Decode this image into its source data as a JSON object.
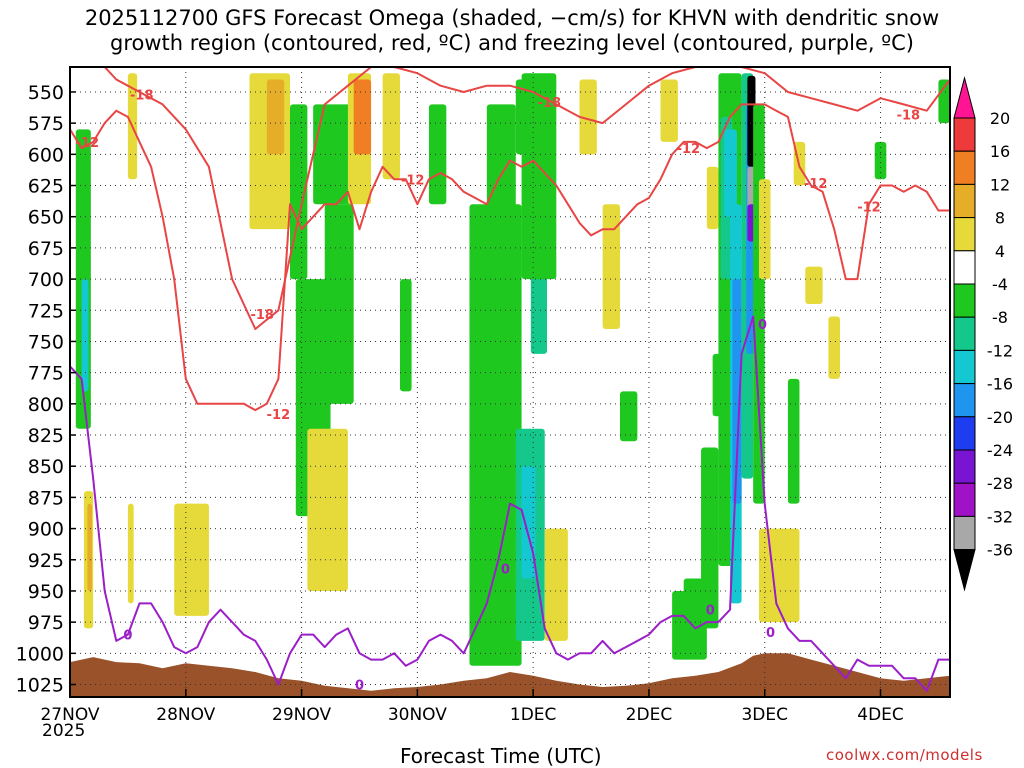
{
  "title": "2025112700 GFS Forecast Omega (shaded, −cm/s) for KHVN with dendritic snow\ngrowth region (contoured, red, ºC) and freezing level (contoured, purple, ºC)",
  "footer": {
    "xlabel": "Forecast Time (UTC)",
    "credit": "coolwx.com/models",
    "year": "2025"
  },
  "chart_data": {
    "type": "heatmap",
    "y_levels": [
      "550",
      "575",
      "600",
      "625",
      "650",
      "675",
      "700",
      "725",
      "750",
      "775",
      "800",
      "825",
      "850",
      "875",
      "900",
      "925",
      "950",
      "975",
      "1000",
      "1025"
    ],
    "ylim": [
      1035,
      530
    ],
    "x_days": [
      "27NOV",
      "28NOV",
      "29NOV",
      "30NOV",
      "1DEC",
      "2DEC",
      "3DEC",
      "4DEC"
    ],
    "xlim": [
      0,
      7.6
    ],
    "colorbar": {
      "labels": [
        "20",
        "16",
        "12",
        "8",
        "4",
        "-4",
        "-8",
        "-12",
        "-16",
        "-20",
        "-24",
        "-28",
        "-32",
        "-36"
      ],
      "colors": [
        "#ff1493",
        "#ee3a3a",
        "#ef7f22",
        "#e6ad28",
        "#e6da3a",
        "#ffffff",
        "#1ec81e",
        "#14c88c",
        "#14c8d2",
        "#1e96f0",
        "#1e3cf0",
        "#7814d2",
        "#a012c8",
        "#a8a8a8",
        "#000000"
      ]
    },
    "omega_blobs": [
      {
        "x": [
          0.05,
          0.18
        ],
        "p": [
          580,
          820
        ],
        "c": "#1ec81e"
      },
      {
        "x": [
          0.1,
          0.16
        ],
        "p": [
          700,
          790
        ],
        "c": "#14c8d2"
      },
      {
        "x": [
          0.12,
          0.2
        ],
        "p": [
          870,
          980
        ],
        "c": "#e6da3a"
      },
      {
        "x": [
          0.15,
          0.19
        ],
        "p": [
          880,
          950
        ],
        "c": "#e6ad28"
      },
      {
        "x": [
          0.5,
          0.55
        ],
        "p": [
          880,
          960
        ],
        "c": "#e6da3a"
      },
      {
        "x": [
          0.5,
          0.58
        ],
        "p": [
          535,
          620
        ],
        "c": "#e6da3a"
      },
      {
        "x": [
          0.9,
          1.2
        ],
        "p": [
          880,
          970
        ],
        "c": "#e6da3a"
      },
      {
        "x": [
          1.55,
          1.9
        ],
        "p": [
          535,
          660
        ],
        "c": "#e6da3a"
      },
      {
        "x": [
          1.7,
          1.85
        ],
        "p": [
          540,
          600
        ],
        "c": "#e6ad28"
      },
      {
        "x": [
          1.9,
          2.05
        ],
        "p": [
          560,
          700
        ],
        "c": "#1ec81e"
      },
      {
        "x": [
          1.95,
          2.25
        ],
        "p": [
          700,
          890
        ],
        "c": "#1ec81e"
      },
      {
        "x": [
          2.05,
          2.4
        ],
        "p": [
          820,
          950
        ],
        "c": "#e6da3a"
      },
      {
        "x": [
          2.1,
          2.45
        ],
        "p": [
          560,
          640
        ],
        "c": "#1ec81e"
      },
      {
        "x": [
          2.2,
          2.45
        ],
        "p": [
          640,
          800
        ],
        "c": "#1ec81e"
      },
      {
        "x": [
          2.4,
          2.6
        ],
        "p": [
          535,
          640
        ],
        "c": "#e6da3a"
      },
      {
        "x": [
          2.45,
          2.6
        ],
        "p": [
          540,
          600
        ],
        "c": "#ef7f22"
      },
      {
        "x": [
          2.7,
          2.85
        ],
        "p": [
          535,
          620
        ],
        "c": "#e6da3a"
      },
      {
        "x": [
          2.85,
          2.95
        ],
        "p": [
          700,
          790
        ],
        "c": "#1ec81e"
      },
      {
        "x": [
          3.1,
          3.25
        ],
        "p": [
          560,
          640
        ],
        "c": "#1ec81e"
      },
      {
        "x": [
          3.45,
          3.9
        ],
        "p": [
          640,
          1010
        ],
        "c": "#1ec81e"
      },
      {
        "x": [
          3.6,
          3.85
        ],
        "p": [
          560,
          660
        ],
        "c": "#1ec81e"
      },
      {
        "x": [
          3.7,
          3.85
        ],
        "p": [
          740,
          820
        ],
        "c": "#1ec81e"
      },
      {
        "x": [
          3.85,
          3.95
        ],
        "p": [
          540,
          600
        ],
        "c": "#1ec81e"
      },
      {
        "x": [
          3.85,
          4.1
        ],
        "p": [
          820,
          990
        ],
        "c": "#14c88c"
      },
      {
        "x": [
          3.9,
          4.02
        ],
        "p": [
          850,
          940
        ],
        "c": "#14c8d2"
      },
      {
        "x": [
          3.98,
          4.12
        ],
        "p": [
          640,
          760
        ],
        "c": "#14c88c"
      },
      {
        "x": [
          3.9,
          4.2
        ],
        "p": [
          535,
          700
        ],
        "c": "#1ec81e"
      },
      {
        "x": [
          4.1,
          4.3
        ],
        "p": [
          900,
          990
        ],
        "c": "#e6da3a"
      },
      {
        "x": [
          4.4,
          4.55
        ],
        "p": [
          540,
          600
        ],
        "c": "#e6da3a"
      },
      {
        "x": [
          4.6,
          4.75
        ],
        "p": [
          640,
          740
        ],
        "c": "#e6da3a"
      },
      {
        "x": [
          4.75,
          4.9
        ],
        "p": [
          790,
          830
        ],
        "c": "#1ec81e"
      },
      {
        "x": [
          5.1,
          5.25
        ],
        "p": [
          540,
          590
        ],
        "c": "#e6da3a"
      },
      {
        "x": [
          5.2,
          5.35
        ],
        "p": [
          950,
          1005
        ],
        "c": "#1ec81e"
      },
      {
        "x": [
          5.3,
          5.5
        ],
        "p": [
          940,
          1005
        ],
        "c": "#1ec81e"
      },
      {
        "x": [
          5.45,
          5.6
        ],
        "p": [
          835,
          980
        ],
        "c": "#1ec81e"
      },
      {
        "x": [
          5.5,
          5.6
        ],
        "p": [
          610,
          660
        ],
        "c": "#e6da3a"
      },
      {
        "x": [
          5.55,
          5.62
        ],
        "p": [
          760,
          810
        ],
        "c": "#1ec81e"
      },
      {
        "x": [
          5.6,
          5.8
        ],
        "p": [
          535,
          930
        ],
        "c": "#1ec81e"
      },
      {
        "x": [
          5.62,
          5.72
        ],
        "p": [
          570,
          700
        ],
        "c": "#14c88c"
      },
      {
        "x": [
          5.65,
          5.76
        ],
        "p": [
          580,
          650
        ],
        "c": "#14c8d2"
      },
      {
        "x": [
          5.7,
          5.8
        ],
        "p": [
          640,
          960
        ],
        "c": "#14c8d2"
      },
      {
        "x": [
          5.72,
          5.8
        ],
        "p": [
          700,
          880
        ],
        "c": "#1e96f0"
      },
      {
        "x": [
          5.8,
          5.9
        ],
        "p": [
          535,
          860
        ],
        "c": "#14c88c"
      },
      {
        "x": [
          5.84,
          5.92
        ],
        "p": [
          560,
          760
        ],
        "c": "#1e96f0"
      },
      {
        "x": [
          5.85,
          5.92
        ],
        "p": [
          537,
          610
        ],
        "c": "#000000"
      },
      {
        "x": [
          5.85,
          5.92
        ],
        "p": [
          610,
          650
        ],
        "c": "#a8a8a8"
      },
      {
        "x": [
          5.85,
          5.92
        ],
        "p": [
          640,
          670
        ],
        "c": "#7814d2"
      },
      {
        "x": [
          5.9,
          6.0
        ],
        "p": [
          560,
          880
        ],
        "c": "#1ec81e"
      },
      {
        "x": [
          5.95,
          6.05
        ],
        "p": [
          620,
          700
        ],
        "c": "#e6da3a"
      },
      {
        "x": [
          5.95,
          6.3
        ],
        "p": [
          900,
          975
        ],
        "c": "#e6da3a"
      },
      {
        "x": [
          6.2,
          6.3
        ],
        "p": [
          780,
          880
        ],
        "c": "#1ec81e"
      },
      {
        "x": [
          6.25,
          6.35
        ],
        "p": [
          590,
          625
        ],
        "c": "#e6da3a"
      },
      {
        "x": [
          6.35,
          6.5
        ],
        "p": [
          690,
          720
        ],
        "c": "#e6da3a"
      },
      {
        "x": [
          6.55,
          6.65
        ],
        "p": [
          730,
          780
        ],
        "c": "#e6da3a"
      },
      {
        "x": [
          6.95,
          7.05
        ],
        "p": [
          590,
          620
        ],
        "c": "#1ec81e"
      },
      {
        "x": [
          7.5,
          7.6
        ],
        "p": [
          540,
          575
        ],
        "c": "#1ec81e"
      }
    ],
    "series": [
      {
        "name": "-12",
        "color": "#e84545",
        "x": [
          0.0,
          0.1,
          0.2,
          0.3,
          0.4,
          0.5,
          0.6,
          0.7,
          0.8,
          0.9,
          1.0,
          1.1,
          1.2,
          1.3,
          1.4,
          1.5,
          1.6,
          1.7,
          1.8,
          1.9,
          2.0,
          2.1,
          2.2,
          2.3,
          2.4,
          2.5,
          2.6,
          2.7,
          2.8,
          2.9,
          3.0,
          3.1,
          3.2,
          3.3,
          3.4,
          3.5,
          3.6,
          3.7,
          3.8,
          3.9,
          4.0,
          4.1,
          4.2,
          4.3,
          4.4,
          4.5,
          4.6,
          4.7,
          4.8,
          4.9,
          5.0,
          5.1,
          5.2,
          5.3,
          5.4,
          5.5,
          5.6,
          5.7,
          5.8,
          5.9,
          6.0,
          6.1,
          6.2,
          6.3,
          6.4,
          6.5,
          6.6,
          6.7,
          6.8,
          6.9,
          7.0,
          7.1,
          7.2,
          7.3,
          7.4,
          7.5,
          7.6
        ],
        "p": [
          580,
          595,
          590,
          575,
          565,
          570,
          590,
          610,
          650,
          700,
          780,
          800,
          800,
          800,
          800,
          800,
          805,
          800,
          780,
          640,
          660,
          650,
          640,
          640,
          630,
          660,
          630,
          610,
          620,
          620,
          640,
          620,
          615,
          620,
          630,
          635,
          640,
          620,
          605,
          610,
          605,
          615,
          625,
          640,
          655,
          665,
          660,
          660,
          650,
          640,
          635,
          620,
          600,
          590,
          590,
          595,
          590,
          570,
          560,
          560,
          560,
          565,
          570,
          610,
          625,
          630,
          660,
          700,
          700,
          640,
          625,
          625,
          630,
          625,
          630,
          645,
          645
        ]
      },
      {
        "name": "-18",
        "color": "#e84545",
        "x": [
          0.0,
          0.2,
          0.4,
          0.6,
          0.8,
          1.0,
          1.2,
          1.4,
          1.6,
          1.8,
          2.0,
          2.2,
          2.4,
          2.6,
          2.8,
          3.0,
          3.2,
          3.4,
          3.6,
          3.8,
          4.0,
          4.2,
          4.4,
          4.6,
          4.8,
          5.0,
          5.2,
          5.4,
          5.6,
          5.8,
          6.0,
          6.2,
          6.4,
          6.6,
          6.8,
          7.0,
          7.2,
          7.4,
          7.6
        ],
        "p": [
          520,
          520,
          540,
          550,
          560,
          580,
          610,
          700,
          740,
          725,
          640,
          560,
          545,
          530,
          530,
          535,
          545,
          550,
          545,
          545,
          550,
          560,
          570,
          575,
          560,
          545,
          535,
          530,
          530,
          530,
          535,
          550,
          555,
          560,
          565,
          555,
          560,
          565,
          540
        ]
      },
      {
        "name": "0",
        "color": "#9b1fc8",
        "x": [
          0.0,
          0.1,
          0.2,
          0.3,
          0.4,
          0.5,
          0.6,
          0.7,
          0.8,
          0.9,
          1.0,
          1.1,
          1.2,
          1.3,
          1.4,
          1.5,
          1.6,
          1.7,
          1.8,
          1.9,
          2.0,
          2.1,
          2.2,
          2.3,
          2.4,
          2.5,
          2.6,
          2.7,
          2.8,
          2.9,
          3.0,
          3.1,
          3.2,
          3.3,
          3.4,
          3.5,
          3.6,
          3.7,
          3.8,
          3.9,
          4.0,
          4.1,
          4.2,
          4.3,
          4.4,
          4.5,
          4.6,
          4.7,
          4.8,
          4.9,
          5.0,
          5.1,
          5.2,
          5.3,
          5.4,
          5.5,
          5.6,
          5.7,
          5.8,
          5.9,
          6.0,
          6.1,
          6.2,
          6.3,
          6.4,
          6.5,
          6.6,
          6.7,
          6.8,
          6.9,
          7.0,
          7.1,
          7.2,
          7.3,
          7.4,
          7.5,
          7.6
        ],
        "p": [
          770,
          780,
          860,
          950,
          990,
          985,
          960,
          960,
          975,
          995,
          1000,
          995,
          975,
          965,
          975,
          985,
          990,
          1005,
          1025,
          1000,
          985,
          985,
          995,
          985,
          980,
          1000,
          1005,
          1005,
          1000,
          1010,
          1005,
          990,
          985,
          990,
          1000,
          980,
          960,
          925,
          880,
          885,
          920,
          980,
          1000,
          1005,
          1000,
          1000,
          990,
          1000,
          995,
          990,
          985,
          975,
          970,
          970,
          980,
          975,
          975,
          965,
          760,
          730,
          880,
          960,
          980,
          990,
          990,
          1000,
          1010,
          1020,
          1005,
          1010,
          1010,
          1010,
          1020,
          1020,
          1030,
          1005,
          1005
        ]
      }
    ],
    "contour_labels": [
      {
        "t": "-12",
        "x": 0.15,
        "p": 590
      },
      {
        "t": "-18",
        "x": 0.62,
        "p": 552
      },
      {
        "t": "-18",
        "x": 1.66,
        "p": 728
      },
      {
        "t": "-12",
        "x": 1.8,
        "p": 808
      },
      {
        "t": "-12",
        "x": 2.96,
        "p": 620
      },
      {
        "t": "-18",
        "x": 4.14,
        "p": 558
      },
      {
        "t": "-12",
        "x": 5.34,
        "p": 595
      },
      {
        "t": "-12",
        "x": 6.44,
        "p": 623
      },
      {
        "t": "-12",
        "x": 6.9,
        "p": 642
      },
      {
        "t": "-18",
        "x": 7.24,
        "p": 568
      },
      {
        "t": "0",
        "x": 0.5,
        "p": 985
      },
      {
        "t": "0",
        "x": 2.5,
        "p": 1025
      },
      {
        "t": "0",
        "x": 3.76,
        "p": 932
      },
      {
        "t": "0",
        "x": 5.53,
        "p": 965
      },
      {
        "t": "0",
        "x": 5.98,
        "p": 736
      },
      {
        "t": "0",
        "x": 6.05,
        "p": 983
      }
    ],
    "terrain": {
      "color": "#99522a",
      "x": [
        0.0,
        0.2,
        0.4,
        0.6,
        0.8,
        1.0,
        1.2,
        1.4,
        1.6,
        1.8,
        2.0,
        2.2,
        2.4,
        2.6,
        2.8,
        3.0,
        3.2,
        3.4,
        3.6,
        3.8,
        4.0,
        4.2,
        4.4,
        4.6,
        4.8,
        5.0,
        5.2,
        5.4,
        5.6,
        5.8,
        5.9,
        6.0,
        6.2,
        6.4,
        6.6,
        6.8,
        7.0,
        7.2,
        7.4,
        7.6
      ],
      "p": [
        1007,
        1003,
        1007,
        1008,
        1012,
        1008,
        1010,
        1012,
        1015,
        1020,
        1022,
        1026,
        1028,
        1030,
        1028,
        1027,
        1025,
        1022,
        1020,
        1015,
        1018,
        1022,
        1025,
        1027,
        1026,
        1024,
        1020,
        1018,
        1015,
        1008,
        1002,
        1000,
        1000,
        1005,
        1010,
        1015,
        1020,
        1022,
        1020,
        1018
      ]
    }
  }
}
